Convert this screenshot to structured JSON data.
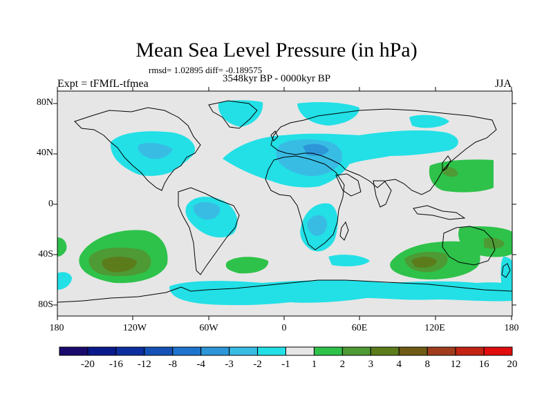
{
  "title": "Mean Sea Level Pressure (in hPa)",
  "stats": "rmsd= 1.02895 diff= -0.189575",
  "period": "3548kyr BP - 0000kyr BP",
  "experiment": "Expt = tFMfL-tfmea",
  "season": "JJA",
  "lat_labels": [
    "80N",
    "40N",
    "0",
    "40S",
    "80S"
  ],
  "lon_labels": [
    "180",
    "120W",
    "60W",
    "0",
    "60E",
    "120E",
    "180"
  ],
  "colorbar": {
    "labels": [
      "-20",
      "-16",
      "-12",
      "-8",
      "-4",
      "-3",
      "-2",
      "-1",
      "1",
      "2",
      "3",
      "4",
      "8",
      "12",
      "16",
      "20"
    ],
    "colors": [
      "#1a0a6e",
      "#0a1a8c",
      "#0c2fa0",
      "#1452b8",
      "#1e74cc",
      "#2c96d8",
      "#38bce4",
      "#22e0e6",
      "#e6e6e6",
      "#2ec24a",
      "#4e9a34",
      "#5c7c1c",
      "#6e5c14",
      "#a03c1c",
      "#c42414",
      "#e00e0e"
    ]
  },
  "map_colors": {
    "background": "#e6e6e6",
    "neg1": "#22e0e6",
    "neg2": "#38bce4",
    "neg3": "#2c96d8",
    "pos1": "#2ec24a",
    "pos2": "#4e9a34",
    "pos3": "#5c7c1c",
    "pos4": "#6e5c14"
  }
}
